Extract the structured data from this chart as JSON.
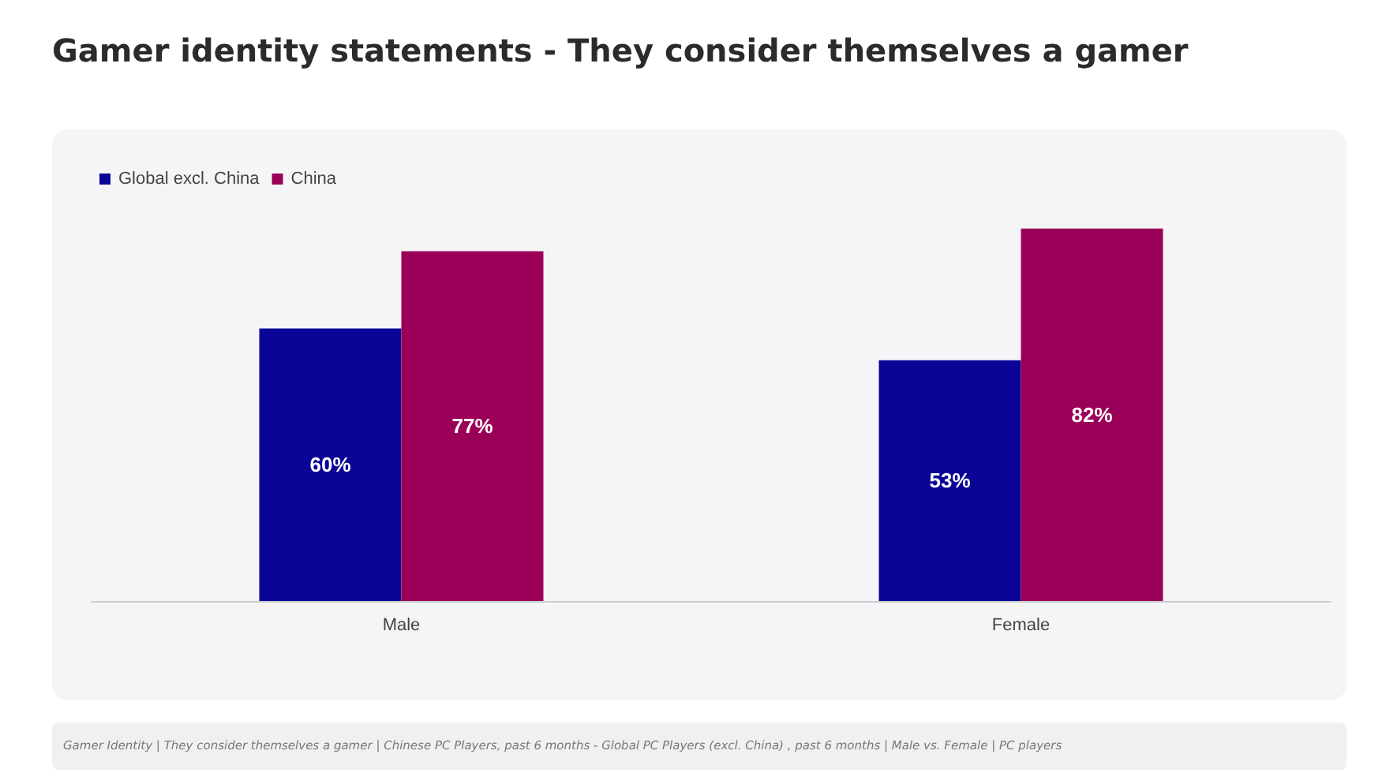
{
  "chart_data": {
    "type": "bar",
    "title": "Gamer identity statements - They consider themselves a gamer",
    "categories": [
      "Male",
      "Female"
    ],
    "series": [
      {
        "name": "Global excl. China",
        "color": "#0a0596",
        "values": [
          60,
          53
        ],
        "value_labels": [
          "60%",
          "53%"
        ]
      },
      {
        "name": "China",
        "color": "#9b0058",
        "values": [
          77,
          82
        ],
        "value_labels": [
          "77%",
          "82%"
        ]
      }
    ],
    "legend": "top left",
    "annotations": [
      "Gamer Identity | They consider themselves a gamer | Chinese PC Players, past 6 months - Global PC Players (excl. China) , past 6 months | Male vs. Female | PC players"
    ]
  }
}
